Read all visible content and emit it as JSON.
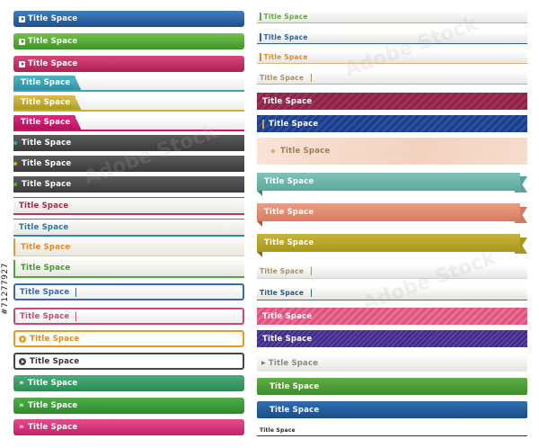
{
  "label": "Title Space",
  "stock_id": "#71277927",
  "watermark": "Adobe Stock",
  "left": [
    {
      "style": "grad",
      "color": "#2b5f9f"
    },
    {
      "style": "grad",
      "color": "#4ea832"
    },
    {
      "style": "grad",
      "color": "#c4306a"
    },
    {
      "style": "tab",
      "color": "#3aa3b6"
    },
    {
      "style": "tab",
      "color": "#c8b22a"
    },
    {
      "style": "tab",
      "color": "#c81a6b"
    },
    {
      "style": "dark",
      "accent": "#3aa3b6"
    },
    {
      "style": "dark",
      "accent": "#d1b42c"
    },
    {
      "style": "dark",
      "accent": "#5aab3a"
    },
    {
      "style": "line",
      "color": "#b7365b"
    },
    {
      "style": "line",
      "color": "#2e89a6"
    },
    {
      "style": "line",
      "color": "#e29a3a"
    },
    {
      "style": "line",
      "color": "#4caa3a"
    },
    {
      "style": "box",
      "color": "#3a68a8"
    },
    {
      "style": "box",
      "color": "#c94a72"
    },
    {
      "style": "circle",
      "color": "#e89a1e"
    },
    {
      "style": "circle",
      "color": "#444444"
    },
    {
      "style": "chevron",
      "color": "#3f9e6a"
    },
    {
      "style": "chevron",
      "color": "#3c9a3a"
    },
    {
      "style": "chevron",
      "color": "#d43478"
    }
  ],
  "right": [
    {
      "style": "light",
      "color": "#6aa644"
    },
    {
      "style": "light",
      "color": "#2a63a8"
    },
    {
      "style": "light",
      "color": "#d58a3a"
    },
    {
      "style": "light",
      "color": "#a69266"
    },
    {
      "style": "stripe",
      "color": "#8c2445"
    },
    {
      "style": "stripe",
      "color": "#1d3d86"
    },
    {
      "style": "peach",
      "color": "#f3d2bf"
    },
    {
      "style": "ribbon",
      "color": "#6fb7ad"
    },
    {
      "style": "ribbon",
      "color": "#e08a72"
    },
    {
      "style": "ribbon",
      "color": "#b8a62c"
    },
    {
      "style": "light",
      "color": "#a69266"
    },
    {
      "style": "light",
      "color": "#2c7a8a"
    },
    {
      "style": "stripe",
      "color": "#e0527e"
    },
    {
      "style": "stripe",
      "color": "#3e2a84"
    },
    {
      "style": "arrow",
      "color": "#888888"
    },
    {
      "style": "flat",
      "color": "#4c9a36"
    },
    {
      "style": "flat",
      "color": "#1f5a9a"
    },
    {
      "style": "bottom",
      "color": "#222222"
    }
  ]
}
